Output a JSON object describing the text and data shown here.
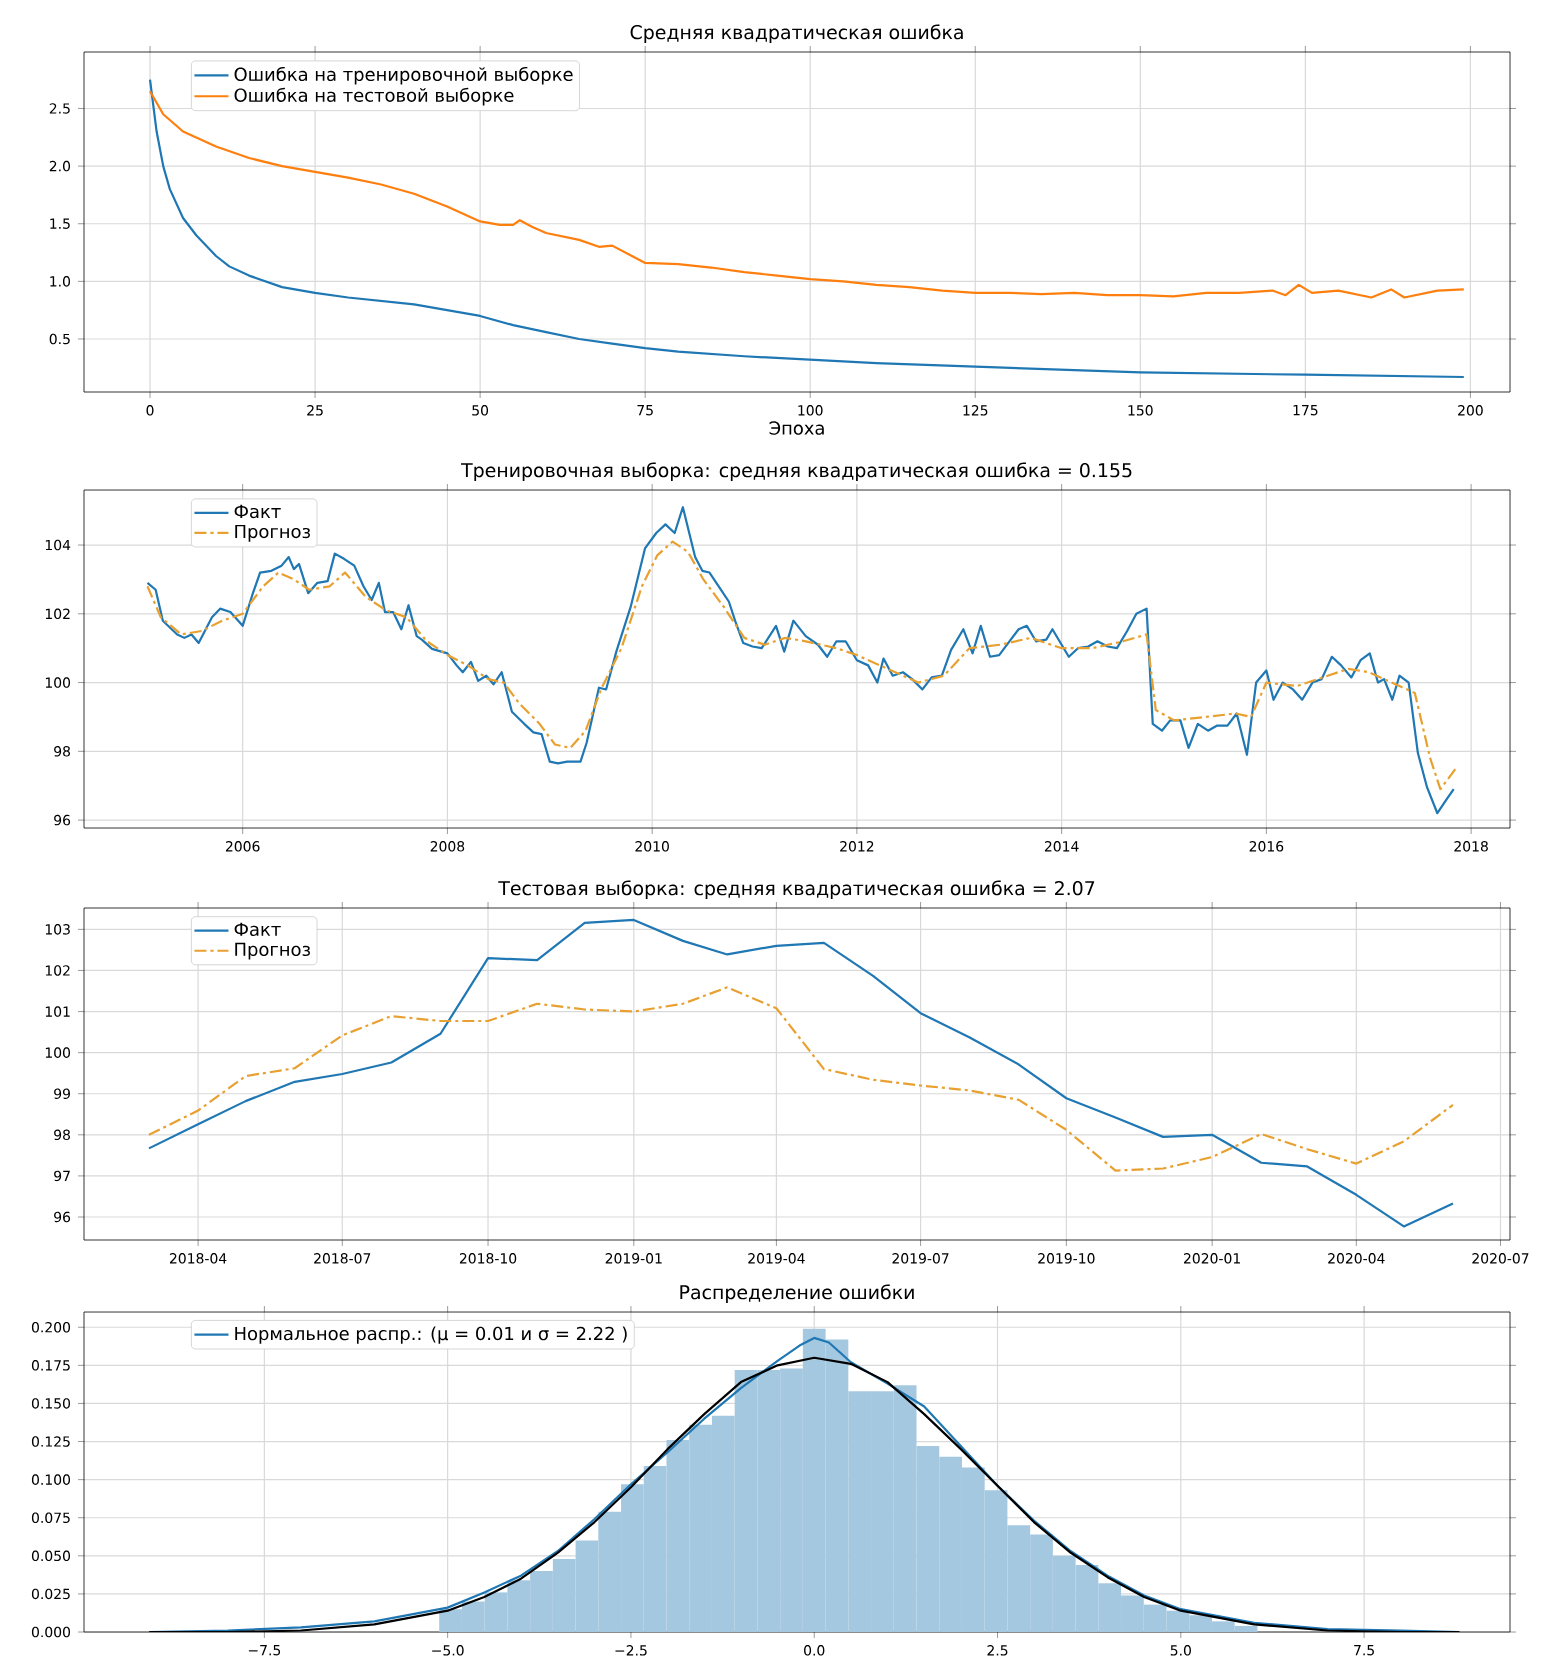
{
  "chart_data": [
    {
      "type": "line",
      "title": "Средняя квадратическая ошибка",
      "xlabel": "Эпоха",
      "xlim": [
        -10,
        206
      ],
      "ylim": [
        0.04,
        2.99
      ],
      "xticks": [
        0,
        25,
        50,
        75,
        100,
        125,
        150,
        175,
        200
      ],
      "yticks": [
        {
          "value": 0.5,
          "label": "0.5"
        },
        {
          "value": 1.0,
          "label": "1.0"
        },
        {
          "value": 1.5,
          "label": "1.5"
        },
        {
          "value": 2.0,
          "label": "2.0"
        },
        {
          "value": 2.5,
          "label": "2.5"
        }
      ],
      "grid": true,
      "legend": "top left",
      "series": [
        {
          "name": "Ошибка на тренировочной выборке",
          "color": "#1f77b4",
          "x": [
            0,
            1,
            2,
            3,
            5,
            7,
            10,
            12,
            15,
            20,
            25,
            30,
            40,
            50,
            55,
            60,
            65,
            70,
            75,
            80,
            90,
            100,
            110,
            125,
            140,
            150,
            175,
            199
          ],
          "values": [
            2.75,
            2.3,
            2.0,
            1.8,
            1.55,
            1.4,
            1.22,
            1.13,
            1.05,
            0.95,
            0.9,
            0.86,
            0.8,
            0.7,
            0.62,
            0.56,
            0.5,
            0.46,
            0.42,
            0.39,
            0.35,
            0.32,
            0.29,
            0.26,
            0.23,
            0.21,
            0.19,
            0.17
          ]
        },
        {
          "name": "Ошибка на тестовой выборке",
          "color": "#ff7f0e",
          "x": [
            0,
            2,
            5,
            10,
            15,
            20,
            25,
            30,
            35,
            40,
            45,
            50,
            53,
            55,
            56,
            58,
            60,
            65,
            68,
            70,
            73,
            75,
            80,
            85,
            90,
            95,
            100,
            105,
            110,
            115,
            120,
            125,
            130,
            135,
            140,
            145,
            150,
            155,
            160,
            165,
            170,
            172,
            174,
            176,
            180,
            185,
            188,
            190,
            195,
            199
          ],
          "values": [
            2.65,
            2.45,
            2.3,
            2.17,
            2.07,
            2.0,
            1.95,
            1.9,
            1.84,
            1.76,
            1.65,
            1.52,
            1.49,
            1.49,
            1.53,
            1.47,
            1.42,
            1.36,
            1.3,
            1.31,
            1.22,
            1.16,
            1.15,
            1.12,
            1.08,
            1.05,
            1.02,
            1.0,
            0.97,
            0.95,
            0.92,
            0.9,
            0.9,
            0.89,
            0.9,
            0.88,
            0.88,
            0.87,
            0.9,
            0.9,
            0.92,
            0.88,
            0.97,
            0.9,
            0.92,
            0.86,
            0.93,
            0.86,
            0.92,
            0.93
          ]
        }
      ]
    },
    {
      "type": "line",
      "title": "Тренировочная выборка: средняя квадратическая ошибка = 0.155",
      "xlim": [
        2004.45,
        2018.38
      ],
      "ylim": [
        95.77,
        105.6
      ],
      "xticks": [
        2006,
        2008,
        2010,
        2012,
        2014,
        2016,
        2018
      ],
      "yticks": [
        96,
        98,
        100,
        102,
        104
      ],
      "grid": true,
      "legend": "top left",
      "series": [
        {
          "name": "Факт",
          "color": "#1f77b4",
          "line_style": "solid",
          "x": [
            2005.07,
            2005.15,
            2005.22,
            2005.36,
            2005.43,
            2005.5,
            2005.57,
            2005.7,
            2005.78,
            2005.88,
            2006.0,
            2006.1,
            2006.17,
            2006.28,
            2006.38,
            2006.45,
            2006.5,
            2006.55,
            2006.64,
            2006.73,
            2006.83,
            2006.9,
            2006.99,
            2007.09,
            2007.18,
            2007.26,
            2007.33,
            2007.39,
            2007.47,
            2007.55,
            2007.62,
            2007.7,
            2007.75,
            2007.85,
            2008.0,
            2008.09,
            2008.15,
            2008.23,
            2008.3,
            2008.38,
            2008.45,
            2008.53,
            2008.63,
            2008.75,
            2008.84,
            2008.92,
            2009.0,
            2009.08,
            2009.17,
            2009.3,
            2009.36,
            2009.48,
            2009.55,
            2009.65,
            2009.79,
            2009.93,
            2010.04,
            2010.13,
            2010.22,
            2010.3,
            2010.42,
            2010.49,
            2010.56,
            2010.65,
            2010.75,
            2010.81,
            2010.89,
            2010.98,
            2011.07,
            2011.21,
            2011.29,
            2011.38,
            2011.5,
            2011.62,
            2011.71,
            2011.8,
            2011.89,
            2012.0,
            2012.11,
            2012.2,
            2012.26,
            2012.35,
            2012.45,
            2012.54,
            2012.64,
            2012.73,
            2012.83,
            2012.92,
            2013.04,
            2013.13,
            2013.21,
            2013.3,
            2013.39,
            2013.49,
            2013.58,
            2013.66,
            2013.75,
            2013.85,
            2013.91,
            2014.0,
            2014.07,
            2014.16,
            2014.26,
            2014.35,
            2014.45,
            2014.54,
            2014.64,
            2014.73,
            2014.83,
            2014.89,
            2014.98,
            2015.06,
            2015.16,
            2015.24,
            2015.33,
            2015.43,
            2015.52,
            2015.62,
            2015.71,
            2015.81,
            2015.9,
            2016.0,
            2016.07,
            2016.16,
            2016.26,
            2016.35,
            2016.45,
            2016.54,
            2016.64,
            2016.73,
            2016.83,
            2016.92,
            2017.01,
            2017.09,
            2017.15,
            2017.23,
            2017.3,
            2017.39,
            2017.48,
            2017.57,
            2017.67,
            2017.76,
            2017.83
          ],
          "values": [
            102.9,
            102.7,
            101.8,
            101.4,
            101.3,
            101.4,
            101.15,
            101.9,
            102.15,
            102.05,
            101.65,
            102.6,
            103.2,
            103.25,
            103.4,
            103.65,
            103.3,
            103.45,
            102.6,
            102.9,
            102.95,
            103.75,
            103.6,
            103.4,
            102.8,
            102.4,
            102.9,
            102.05,
            102.05,
            101.55,
            102.25,
            101.35,
            101.25,
            100.98,
            100.85,
            100.5,
            100.3,
            100.6,
            100.05,
            100.2,
            99.95,
            100.3,
            99.15,
            98.8,
            98.55,
            98.5,
            97.7,
            97.65,
            97.7,
            97.7,
            98.25,
            99.85,
            99.8,
            100.9,
            102.2,
            103.9,
            104.35,
            104.6,
            104.35,
            105.1,
            103.65,
            103.25,
            103.2,
            102.8,
            102.35,
            101.8,
            101.15,
            101.05,
            101.0,
            101.65,
            100.9,
            101.8,
            101.35,
            101.1,
            100.75,
            101.2,
            101.2,
            100.65,
            100.5,
            100.0,
            100.7,
            100.2,
            100.3,
            100.1,
            99.8,
            100.15,
            100.2,
            100.95,
            101.55,
            100.85,
            101.65,
            100.75,
            100.8,
            101.2,
            101.55,
            101.65,
            101.2,
            101.25,
            101.55,
            101.1,
            100.75,
            101.0,
            101.05,
            101.2,
            101.05,
            101.0,
            101.5,
            102.0,
            102.15,
            98.8,
            98.6,
            98.9,
            98.9,
            98.1,
            98.8,
            98.6,
            98.75,
            98.75,
            99.1,
            97.9,
            100.0,
            100.35,
            99.5,
            100.0,
            99.8,
            99.5,
            100.0,
            100.1,
            100.75,
            100.5,
            100.15,
            100.65,
            100.85,
            100.0,
            100.1,
            99.5,
            100.2,
            100.0,
            97.95,
            96.95,
            96.2,
            96.6,
            96.9
          ]
        },
        {
          "name": "Прогноз",
          "color": "#e8a030",
          "line_style": "dashdot",
          "x": [
            2005.07,
            2005.2,
            2005.4,
            2005.6,
            2005.8,
            2006.0,
            2006.2,
            2006.35,
            2006.5,
            2006.65,
            2006.85,
            2007.0,
            2007.2,
            2007.4,
            2007.6,
            2007.8,
            2008.0,
            2008.2,
            2008.4,
            2008.55,
            2008.7,
            2008.9,
            2009.05,
            2009.2,
            2009.35,
            2009.5,
            2009.7,
            2009.9,
            2010.05,
            2010.2,
            2010.35,
            2010.5,
            2010.7,
            2010.9,
            2011.1,
            2011.3,
            2011.5,
            2011.8,
            2012.0,
            2012.3,
            2012.6,
            2012.85,
            2013.1,
            2013.4,
            2013.7,
            2014.0,
            2014.3,
            2014.6,
            2014.83,
            2014.92,
            2015.1,
            2015.4,
            2015.7,
            2015.85,
            2016.0,
            2016.3,
            2016.6,
            2016.8,
            2017.0,
            2017.3,
            2017.45,
            2017.6,
            2017.7,
            2017.85
          ],
          "values": [
            102.8,
            101.9,
            101.4,
            101.5,
            101.8,
            102.0,
            102.8,
            103.2,
            103.0,
            102.7,
            102.8,
            103.2,
            102.5,
            102.1,
            101.9,
            101.2,
            100.8,
            100.5,
            100.1,
            100.0,
            99.4,
            98.8,
            98.2,
            98.1,
            98.6,
            99.8,
            101.0,
            102.8,
            103.7,
            104.1,
            103.8,
            103.0,
            102.2,
            101.3,
            101.1,
            101.3,
            101.2,
            101.0,
            100.8,
            100.4,
            100.0,
            100.2,
            101.0,
            101.1,
            101.3,
            101.0,
            101.0,
            101.2,
            101.4,
            99.2,
            98.9,
            99.0,
            99.1,
            99.0,
            100.0,
            99.9,
            100.2,
            100.4,
            100.3,
            99.9,
            99.7,
            97.8,
            96.9,
            97.5
          ]
        }
      ]
    },
    {
      "type": "line",
      "title": "Тестовая выборка: средняя квадратическая ошибка = 2.07",
      "xlim": [
        "2018-01-19",
        "2020-07-07"
      ],
      "ylim": [
        95.44,
        103.52
      ],
      "xticks": [
        "2018-04",
        "2018-07",
        "2018-10",
        "2019-01",
        "2019-04",
        "2019-07",
        "2019-10",
        "2020-01",
        "2020-04",
        "2020-07"
      ],
      "yticks": [
        96,
        97,
        98,
        99,
        100,
        101,
        102,
        103
      ],
      "grid": true,
      "legend": "top left",
      "x": [
        "2018-03",
        "2018-04",
        "2018-05",
        "2018-06",
        "2018-07",
        "2018-08",
        "2018-09",
        "2018-10",
        "2018-11",
        "2018-12",
        "2019-01",
        "2019-02",
        "2019-03",
        "2019-04",
        "2019-05",
        "2019-06",
        "2019-07",
        "2019-08",
        "2019-09",
        "2019-10",
        "2019-11",
        "2019-12",
        "2020-01",
        "2020-02",
        "2020-03",
        "2020-04",
        "2020-05",
        "2020-06"
      ],
      "series": [
        {
          "name": "Факт",
          "color": "#1f77b4",
          "line_style": "solid",
          "values": [
            97.67,
            98.26,
            98.82,
            99.29,
            99.48,
            99.76,
            100.46,
            102.3,
            102.25,
            103.16,
            103.23,
            102.72,
            102.39,
            102.6,
            102.67,
            101.87,
            100.96,
            100.37,
            99.71,
            98.89,
            98.42,
            97.95,
            98.0,
            97.32,
            97.23,
            96.54,
            95.77,
            96.33
          ]
        },
        {
          "name": "Прогноз",
          "color": "#e8a030",
          "line_style": "dashdot",
          "values": [
            98.0,
            98.59,
            99.43,
            99.62,
            100.42,
            100.89,
            100.77,
            100.77,
            101.19,
            101.05,
            101.0,
            101.19,
            101.59,
            101.08,
            99.6,
            99.34,
            99.2,
            99.08,
            98.85,
            98.12,
            97.13,
            97.18,
            97.46,
            98.02,
            97.65,
            97.3,
            97.84,
            98.73
          ]
        }
      ]
    },
    {
      "type": "histogram",
      "title": "Распределение ошибки",
      "xlim": [
        -9.96,
        9.49
      ],
      "ylim": [
        0,
        0.21
      ],
      "xticks": [
        {
          "value": -7.5,
          "label": "−7.5"
        },
        {
          "value": -5.0,
          "label": "−5.0"
        },
        {
          "value": -2.5,
          "label": "−2.5"
        },
        {
          "value": 0.0,
          "label": "0.0"
        },
        {
          "value": 2.5,
          "label": "2.5"
        },
        {
          "value": 5.0,
          "label": "5.0"
        },
        {
          "value": 7.5,
          "label": "7.5"
        }
      ],
      "yticks": [
        {
          "value": 0,
          "label": "0.000"
        },
        {
          "value": 0.025,
          "label": "0.025"
        },
        {
          "value": 0.05,
          "label": "0.050"
        },
        {
          "value": 0.075,
          "label": "0.075"
        },
        {
          "value": 0.1,
          "label": "0.100"
        },
        {
          "value": 0.125,
          "label": "0.125"
        },
        {
          "value": 0.15,
          "label": "0.150"
        },
        {
          "value": 0.175,
          "label": "0.175"
        },
        {
          "value": 0.2,
          "label": "0.200"
        }
      ],
      "grid": true,
      "legend": "top left",
      "color": "#a5c8e1",
      "bins": [
        -5.115,
        -4.805,
        -4.495,
        -4.185,
        -3.875,
        -3.565,
        -3.255,
        -2.945,
        -2.635,
        -2.325,
        -2.015,
        -1.705,
        -1.395,
        -1.085,
        -0.775,
        -0.465,
        -0.155,
        0.155,
        0.465,
        0.775,
        1.085,
        1.395,
        1.705,
        2.015,
        2.325,
        2.635,
        2.945,
        3.255,
        3.565,
        3.875,
        4.185,
        4.495,
        4.805,
        5.115,
        5.425,
        5.735,
        6.045
      ],
      "values": [
        0.015,
        0.02,
        0.026,
        0.034,
        0.04,
        0.048,
        0.06,
        0.079,
        0.097,
        0.109,
        0.126,
        0.136,
        0.142,
        0.172,
        0.172,
        0.173,
        0.199,
        0.192,
        0.158,
        0.158,
        0.162,
        0.122,
        0.115,
        0.108,
        0.093,
        0.07,
        0.064,
        0.05,
        0.044,
        0.032,
        0.024,
        0.018,
        0.014,
        0.011,
        0.007,
        0.004
      ],
      "series": [
        {
          "type": "line",
          "name": "Нормальное распр.: (μ =  0.01 и σ =  2.22 )",
          "color": "#1f77b4",
          "x": [
            -9.07,
            -8,
            -7,
            -6,
            -5,
            -4.5,
            -4,
            -3.5,
            -3,
            -2.5,
            -2,
            -1.5,
            -1,
            -0.5,
            -0.2,
            0,
            0.2,
            0.5,
            1,
            1.5,
            2,
            2.5,
            3,
            3.5,
            4,
            4.5,
            5,
            6,
            7,
            8,
            8.8
          ],
          "values": [
            0.0,
            0.001,
            0.003,
            0.007,
            0.016,
            0.026,
            0.037,
            0.053,
            0.074,
            0.097,
            0.118,
            0.14,
            0.16,
            0.178,
            0.188,
            0.193,
            0.19,
            0.177,
            0.163,
            0.148,
            0.122,
            0.096,
            0.073,
            0.053,
            0.037,
            0.024,
            0.015,
            0.006,
            0.002,
            0.001,
            0.0
          ]
        },
        {
          "type": "line",
          "color": "#000000",
          "x": [
            -9.07,
            -8,
            -7,
            -6,
            -5,
            -4.5,
            -4,
            -3.5,
            -3,
            -2.5,
            -2,
            -1.5,
            -1,
            -0.5,
            0,
            0.5,
            1,
            1.5,
            2,
            2.5,
            3,
            3.5,
            4,
            4.5,
            5,
            6,
            7,
            8,
            8.8
          ],
          "values": [
            0.0,
            0.0,
            0.001,
            0.005,
            0.014,
            0.023,
            0.035,
            0.052,
            0.072,
            0.095,
            0.12,
            0.143,
            0.164,
            0.175,
            0.18,
            0.176,
            0.164,
            0.143,
            0.12,
            0.096,
            0.072,
            0.052,
            0.036,
            0.023,
            0.014,
            0.005,
            0.001,
            0.0,
            0.0
          ]
        }
      ]
    }
  ]
}
